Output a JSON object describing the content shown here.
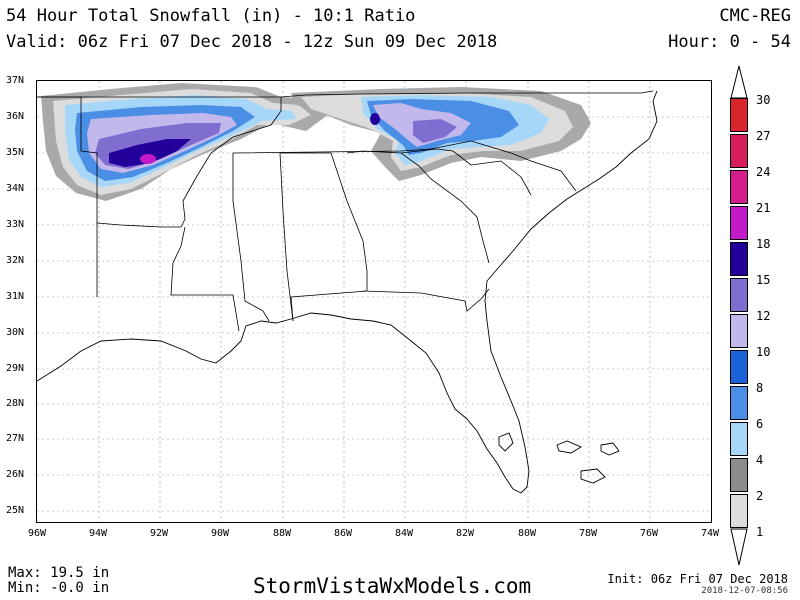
{
  "header": {
    "title": "54 Hour Total Snowfall (in) - 10:1 Ratio",
    "valid": "Valid: 06z Fri 07 Dec 2018 - 12z Sun 09 Dec 2018",
    "model": "CMC-REG",
    "hour": "Hour: 0 - 54"
  },
  "map": {
    "lat_labels": [
      "37N",
      "36N",
      "35N",
      "34N",
      "33N",
      "32N",
      "31N",
      "30N",
      "29N",
      "28N",
      "27N",
      "26N",
      "25N"
    ],
    "lon_labels": [
      "96W",
      "94W",
      "92W",
      "90W",
      "88W",
      "86W",
      "84W",
      "82W",
      "80W",
      "78W",
      "76W",
      "74W"
    ]
  },
  "colorbar": {
    "labels": [
      "30",
      "27",
      "24",
      "21",
      "18",
      "15",
      "12",
      "10",
      "8",
      "6",
      "4",
      "2",
      "1"
    ],
    "colors": [
      "#d8262a",
      "#d61e5a",
      "#d21f8c",
      "#c419c8",
      "#220099",
      "#7f6ed0",
      "#c3b8ec",
      "#1a62d8",
      "#4a8ee6",
      "#a7d7f8",
      "#8c8c8c",
      "#dcdcdc"
    ]
  },
  "snow_colors": {
    "gray": "#a9a9a9",
    "lightblue": "#a7d7f8",
    "blue": "#4a8ee6",
    "darkblue": "#1a62d8",
    "lavender": "#c3b8ec",
    "purple": "#7f6ed0",
    "indigo": "#220099",
    "magenta": "#c419c8"
  },
  "footer": {
    "max": "Max: 19.5 in",
    "min": "Min: -0.0 in",
    "site": "StormVistaWxModels.com",
    "init": "Init: 06z Fri 07 Dec 2018",
    "stamp": "2018-12-07-08:56"
  }
}
